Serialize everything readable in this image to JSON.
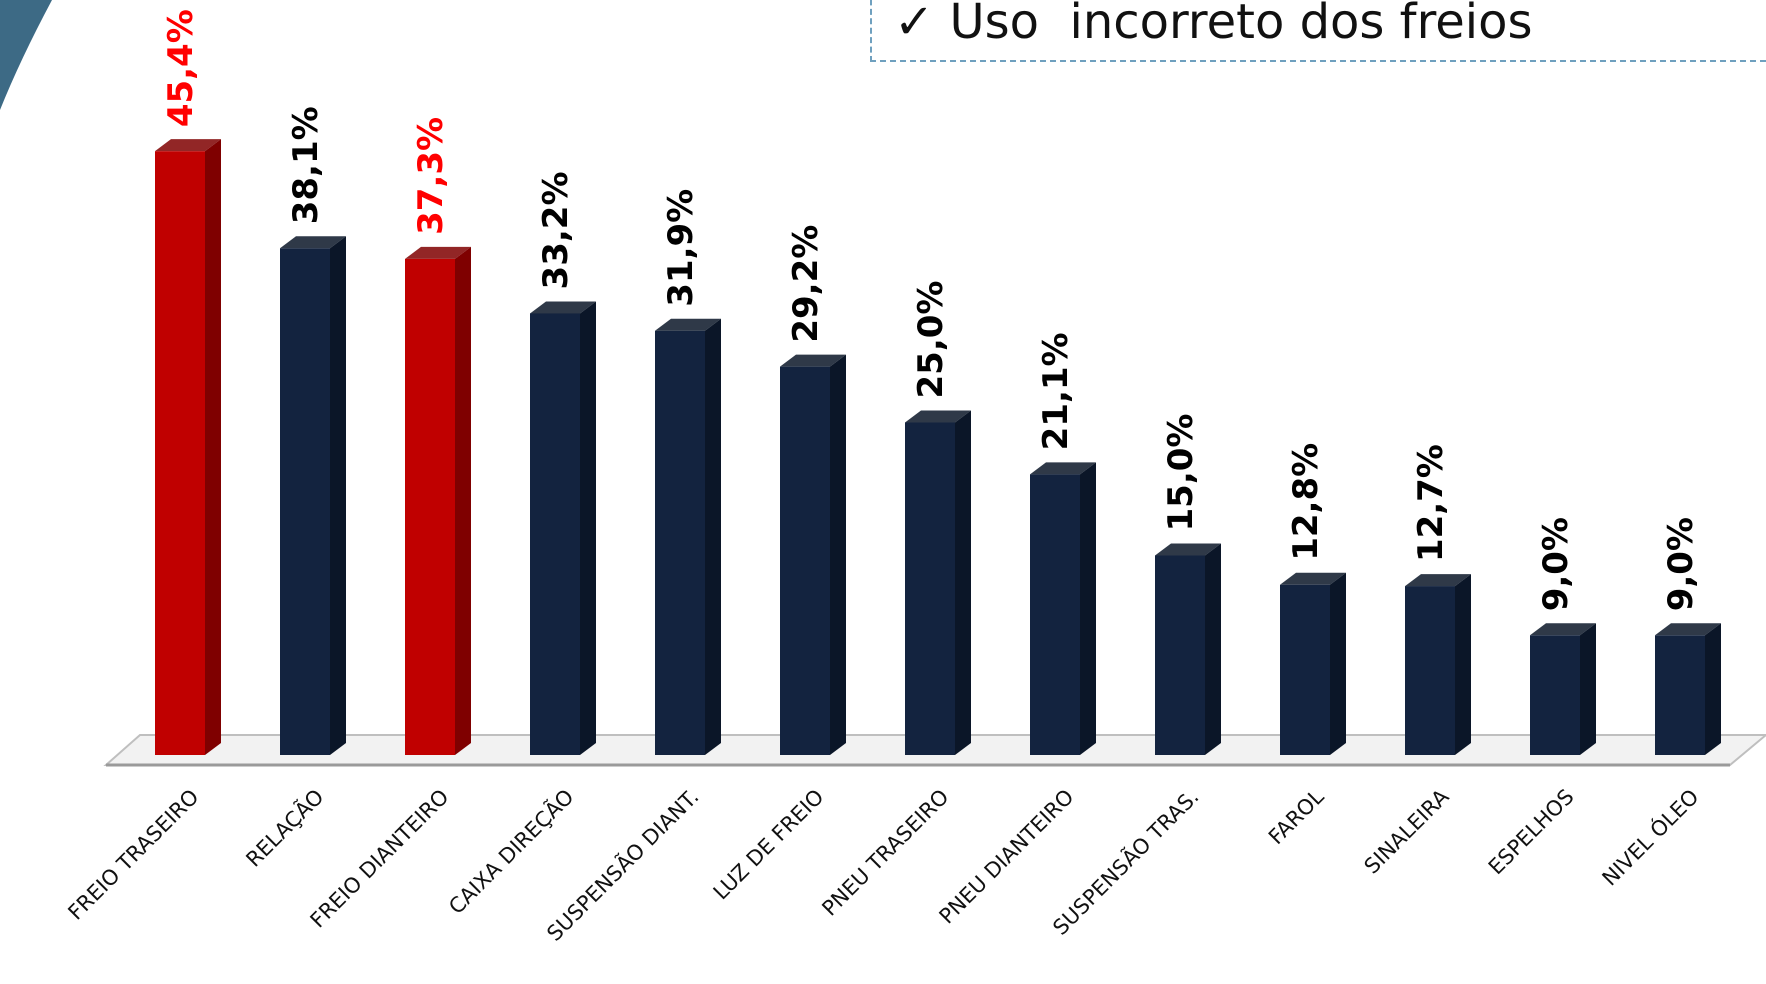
{
  "callout": {
    "check_icon": "checkmark-icon",
    "text": "✓ Uso  incorreto dos freios"
  },
  "colors": {
    "highlight": "#c00000",
    "highlight_side": "#7f0000",
    "normal": "#13233f",
    "normal_side": "#0b1628",
    "label_highlight": "#ff0000",
    "label_normal": "#000000",
    "corner": "#3d6a85"
  },
  "chart_data": {
    "type": "bar",
    "title": "",
    "xlabel": "",
    "ylabel": "",
    "ylim": [
      0,
      50
    ],
    "grid": false,
    "categories": [
      "FREIO TRASEIRO",
      "RELAÇÃO",
      "FREIO DIANTEIRO",
      "CAIXA DIREÇÃO",
      "SUSPENSÃO DIANT.",
      "LUZ DE FREIO",
      "PNEU TRASEIRO",
      "PNEU DIANTEIRO",
      "SUSPENSÃO TRAS.",
      "FAROL",
      "SINALEIRA",
      "ESPELHOS",
      "NIVEL ÓLEO"
    ],
    "values": [
      45.4,
      38.1,
      37.3,
      33.2,
      31.9,
      29.2,
      25.0,
      21.1,
      15.0,
      12.8,
      12.7,
      9.0,
      9.0
    ],
    "data_labels": [
      "45,4%",
      "38,1%",
      "37,3%",
      "33,2%",
      "31,9%",
      "29,2%",
      "25,0%",
      "21,1%",
      "15,0%",
      "12,8%",
      "12,7%",
      "9,0%",
      "9,0%"
    ],
    "highlighted": [
      true,
      false,
      true,
      false,
      false,
      false,
      false,
      false,
      false,
      false,
      false,
      false,
      false
    ]
  }
}
